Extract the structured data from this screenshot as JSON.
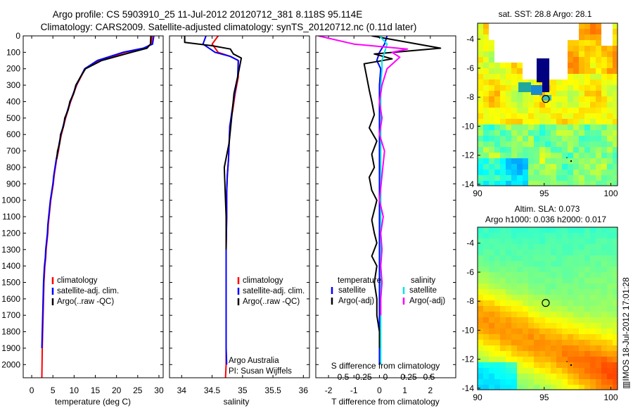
{
  "header": {
    "line1": "Argo profile: CS 5903910_25 11-Jul-2012 20120712_381 8.118S 95.114E",
    "line2": "Climatology: CARS2009. Satellite-adjusted climatology: synTS_20120712.nc (0.11d later)"
  },
  "colors": {
    "climatology": "#ff0000",
    "satellite": "#0000ff",
    "argo": "#000000",
    "salinity_satellite": "#00e5e5",
    "salinity_argo": "#ff00ff"
  },
  "chart_data": [
    {
      "type": "line",
      "name_key": "temperature",
      "xlabel": "temperature (deg C)",
      "ylabel": "",
      "xlim": [
        -2,
        31
      ],
      "ylim": [
        2080,
        0
      ],
      "y_inverted": true,
      "xticks": [
        0,
        5,
        10,
        15,
        20,
        25,
        30
      ],
      "yticks": [
        0,
        100,
        200,
        300,
        400,
        500,
        600,
        700,
        800,
        900,
        1000,
        1100,
        1200,
        1300,
        1400,
        1500,
        1600,
        1700,
        1800,
        1900,
        2000
      ],
      "legend": [
        "climatology",
        "satellite-adj. clim.",
        "Argo(..raw -QC)"
      ],
      "legend_placement": "lower-right",
      "series": [
        {
          "name": "climatology",
          "color": "#ff0000",
          "x": [
            28.4,
            28.2,
            26.5,
            22,
            15.8,
            12.6,
            11.6,
            10.6,
            9.9,
            9.2,
            8.6,
            8.0,
            7.5,
            7.0,
            6.6,
            6.3,
            5.9,
            5.6,
            5.3,
            5.1,
            4.8,
            4.5,
            4.3,
            4.1,
            3.9,
            3.8,
            3.6,
            3.4,
            3.3,
            3.1,
            3.0,
            2.9,
            2.8,
            2.7,
            2.6,
            2.5,
            2.4
          ],
          "y": [
            0,
            50,
            75,
            100,
            150,
            200,
            250,
            300,
            350,
            400,
            450,
            500,
            550,
            600,
            650,
            700,
            750,
            800,
            850,
            900,
            950,
            1000,
            1050,
            1100,
            1150,
            1200,
            1250,
            1300,
            1350,
            1400,
            1450,
            1500,
            1600,
            1700,
            1800,
            1900,
            2080
          ]
        },
        {
          "name": "satellite-adj. clim.",
          "color": "#0000ff",
          "x": [
            28.8,
            28.5,
            26.3,
            21.5,
            15.5,
            12.5,
            11.5,
            10.5,
            9.8,
            9.1,
            8.5,
            7.9,
            7.4,
            6.9,
            6.5,
            6.2,
            5.8,
            5.5,
            5.2,
            5.0,
            4.7,
            4.4,
            4.2,
            4.0,
            3.8,
            3.7,
            3.5,
            3.3,
            3.2,
            3.0,
            2.9,
            2.8,
            2.7,
            2.6,
            2.5,
            2.4
          ],
          "y": [
            0,
            50,
            75,
            100,
            150,
            200,
            250,
            300,
            350,
            400,
            450,
            500,
            550,
            600,
            650,
            700,
            750,
            800,
            850,
            900,
            950,
            1000,
            1050,
            1100,
            1150,
            1200,
            1250,
            1300,
            1350,
            1400,
            1450,
            1500,
            1600,
            1700,
            1800,
            1900
          ]
        },
        {
          "name": "Argo(..raw -QC)",
          "color": "#000000",
          "x": [
            28.1,
            28.0,
            27.2,
            23.5,
            16.5,
            12.7,
            11.5,
            10.4,
            9.9,
            9.0,
            8.6,
            7.8,
            7.5,
            6.8,
            6.6,
            6.1,
            5.9
          ],
          "y": [
            0,
            50,
            75,
            100,
            150,
            200,
            250,
            300,
            350,
            400,
            450,
            500,
            550,
            600,
            650,
            700,
            750
          ]
        }
      ]
    },
    {
      "type": "line",
      "name_key": "salinity",
      "xlabel": "salinity",
      "ylabel": "",
      "xlim": [
        33.8,
        36.1
      ],
      "ylim": [
        2080,
        0
      ],
      "y_inverted": true,
      "xticks": [
        34,
        34.5,
        35,
        35.5,
        36
      ],
      "legend": [
        "climatology",
        "satellite-adj. clim.",
        "Argo(..raw -QC)"
      ],
      "legend_placement": "lower-right",
      "annotation": [
        "Argo Australia",
        "PI: Susan Wijffels"
      ],
      "series": [
        {
          "name": "climatology",
          "color": "#ff0000",
          "x": [
            34.6,
            34.5,
            34.6,
            34.8,
            34.93,
            34.93,
            34.88,
            34.84,
            34.79,
            34.78,
            34.77,
            34.75,
            34.74,
            34.74,
            34.73,
            34.73,
            34.73,
            34.73,
            34.73,
            34.72
          ],
          "y": [
            0,
            50,
            100,
            125,
            150,
            250,
            350,
            450,
            550,
            650,
            750,
            850,
            950,
            1100,
            1300,
            1500,
            1700,
            1900,
            2000,
            2080
          ]
        },
        {
          "name": "satellite-adj. clim.",
          "color": "#0000ff",
          "x": [
            34.4,
            34.35,
            34.55,
            34.8,
            34.93,
            34.92,
            34.87,
            34.83,
            34.79,
            34.78,
            34.77,
            34.75,
            34.74,
            34.74,
            34.73,
            34.73,
            34.73,
            34.73,
            34.74
          ],
          "y": [
            0,
            50,
            100,
            125,
            150,
            250,
            350,
            450,
            550,
            650,
            750,
            850,
            950,
            1100,
            1300,
            1500,
            1700,
            1900,
            2000
          ]
        },
        {
          "name": "Argo(..raw -QC)",
          "color": "#000000",
          "x": [
            34.05,
            34.05,
            34.5,
            34.8,
            34.85,
            34.98,
            34.92,
            34.86,
            34.82,
            34.78,
            34.7,
            34.72,
            34.73,
            34.73
          ],
          "y": [
            0,
            40,
            60,
            80,
            110,
            135,
            250,
            350,
            500,
            650,
            800,
            1000,
            1100,
            1300
          ]
        }
      ]
    },
    {
      "type": "line",
      "name_key": "difference",
      "xlabel": "T difference from climatology",
      "xlabel_top": "S difference from climatology",
      "ylabel": "",
      "xlim": [
        -2.5,
        3
      ],
      "ylim": [
        2080,
        0
      ],
      "y_inverted": true,
      "xticks": [
        -2,
        -1,
        0,
        1,
        2
      ],
      "xticks_top": [
        "-0.5",
        "-0.25",
        "0",
        "0.25",
        "0.5"
      ],
      "legend_groups": [
        {
          "title": "temperature",
          "items": [
            "satellite",
            "Argo(-adj)"
          ]
        },
        {
          "title": "salinity",
          "items": [
            "satellite",
            "Argo(-adj)"
          ]
        }
      ],
      "legend_placement": "lower-center",
      "series": [
        {
          "name": "temperature satellite",
          "color": "#0000ff",
          "x": [
            0.3,
            0.2,
            0.0,
            -0.1,
            0.05,
            0.0,
            0.0,
            0.0,
            0.0,
            0.0,
            0.0,
            0.0,
            0.0,
            0.0,
            0.0,
            0.0,
            0.0,
            0.0,
            0.0,
            0.0
          ],
          "y": [
            0,
            50,
            100,
            150,
            200,
            300,
            400,
            500,
            600,
            700,
            800,
            900,
            1000,
            1100,
            1200,
            1400,
            1600,
            1800,
            1900,
            2000
          ]
        },
        {
          "name": "temperature Argo(-adj)",
          "color": "#000000",
          "x": [
            -0.3,
            2.4,
            -0.2,
            0.5,
            -0.6,
            -0.5,
            -0.4,
            -0.3,
            -0.2,
            -0.4,
            -0.1,
            -0.3,
            -0.2,
            -0.4,
            -0.3,
            -0.1,
            -0.2,
            -0.3,
            -0.2,
            -0.1,
            -0.2,
            -0.3,
            -0.1,
            -0.2,
            -0.1,
            -0.1,
            0.0,
            0.0
          ],
          "y": [
            0,
            75,
            110,
            140,
            170,
            250,
            330,
            400,
            480,
            560,
            640,
            720,
            800,
            860,
            940,
            1000,
            1060,
            1120,
            1200,
            1260,
            1300,
            1340,
            1400,
            1500,
            1600,
            1700,
            1800,
            1900
          ]
        },
        {
          "name": "salinity satellite",
          "color": "#00e5e5",
          "x": [
            0.0,
            0.3,
            0.2,
            0.1,
            0.1,
            0.05,
            0.05,
            0.05,
            0.05,
            0.05,
            0.05,
            0.05,
            0.05,
            0.05,
            0.05,
            0.05,
            0.05,
            0.05
          ],
          "y": [
            0,
            50,
            100,
            150,
            200,
            300,
            400,
            500,
            600,
            700,
            800,
            900,
            1000,
            1200,
            1400,
            1600,
            1800,
            2000
          ]
        },
        {
          "name": "salinity Argo(-adj)",
          "color": "#ff00ff",
          "x": [
            -2.4,
            -1.0,
            1.1,
            0.5,
            0.8,
            0.3,
            0.1,
            0.0,
            0.1,
            0.0,
            0.2,
            0.1,
            0.0,
            0.15,
            0.05,
            0.1,
            0.05,
            0.1,
            0.05,
            0.05
          ],
          "y": [
            0,
            50,
            80,
            100,
            130,
            200,
            300,
            400,
            500,
            600,
            700,
            850,
            1000,
            1100,
            1200,
            1300,
            1400,
            1500,
            1600,
            1700
          ]
        }
      ]
    },
    {
      "type": "heatmap",
      "name_key": "sst_map",
      "title": "sat. SST: 28.8 Argo: 28.1",
      "xlim": [
        90,
        100.5
      ],
      "ylim": [
        -14.1,
        -2.9
      ],
      "xticks": [
        90,
        95,
        100
      ],
      "yticks": [
        -4,
        -6,
        -8,
        -10,
        -12,
        -14
      ],
      "marker": {
        "lon": 95.114,
        "lat": -8.118
      }
    },
    {
      "type": "heatmap",
      "name_key": "sla_map",
      "title": "Altim. SLA: 0.073",
      "subtitle": "Argo h1000: 0.036 h2000: 0.017",
      "xlim": [
        90,
        100.5
      ],
      "ylim": [
        -14.1,
        -2.9
      ],
      "xticks": [
        90,
        95,
        100
      ],
      "yticks": [
        -4,
        -6,
        -8,
        -10,
        -12,
        -14
      ],
      "marker": {
        "lon": 95.114,
        "lat": -8.118
      }
    }
  ],
  "footer": {
    "watermark": "▥IMOS 18-Jul-2012 17:01:28"
  }
}
